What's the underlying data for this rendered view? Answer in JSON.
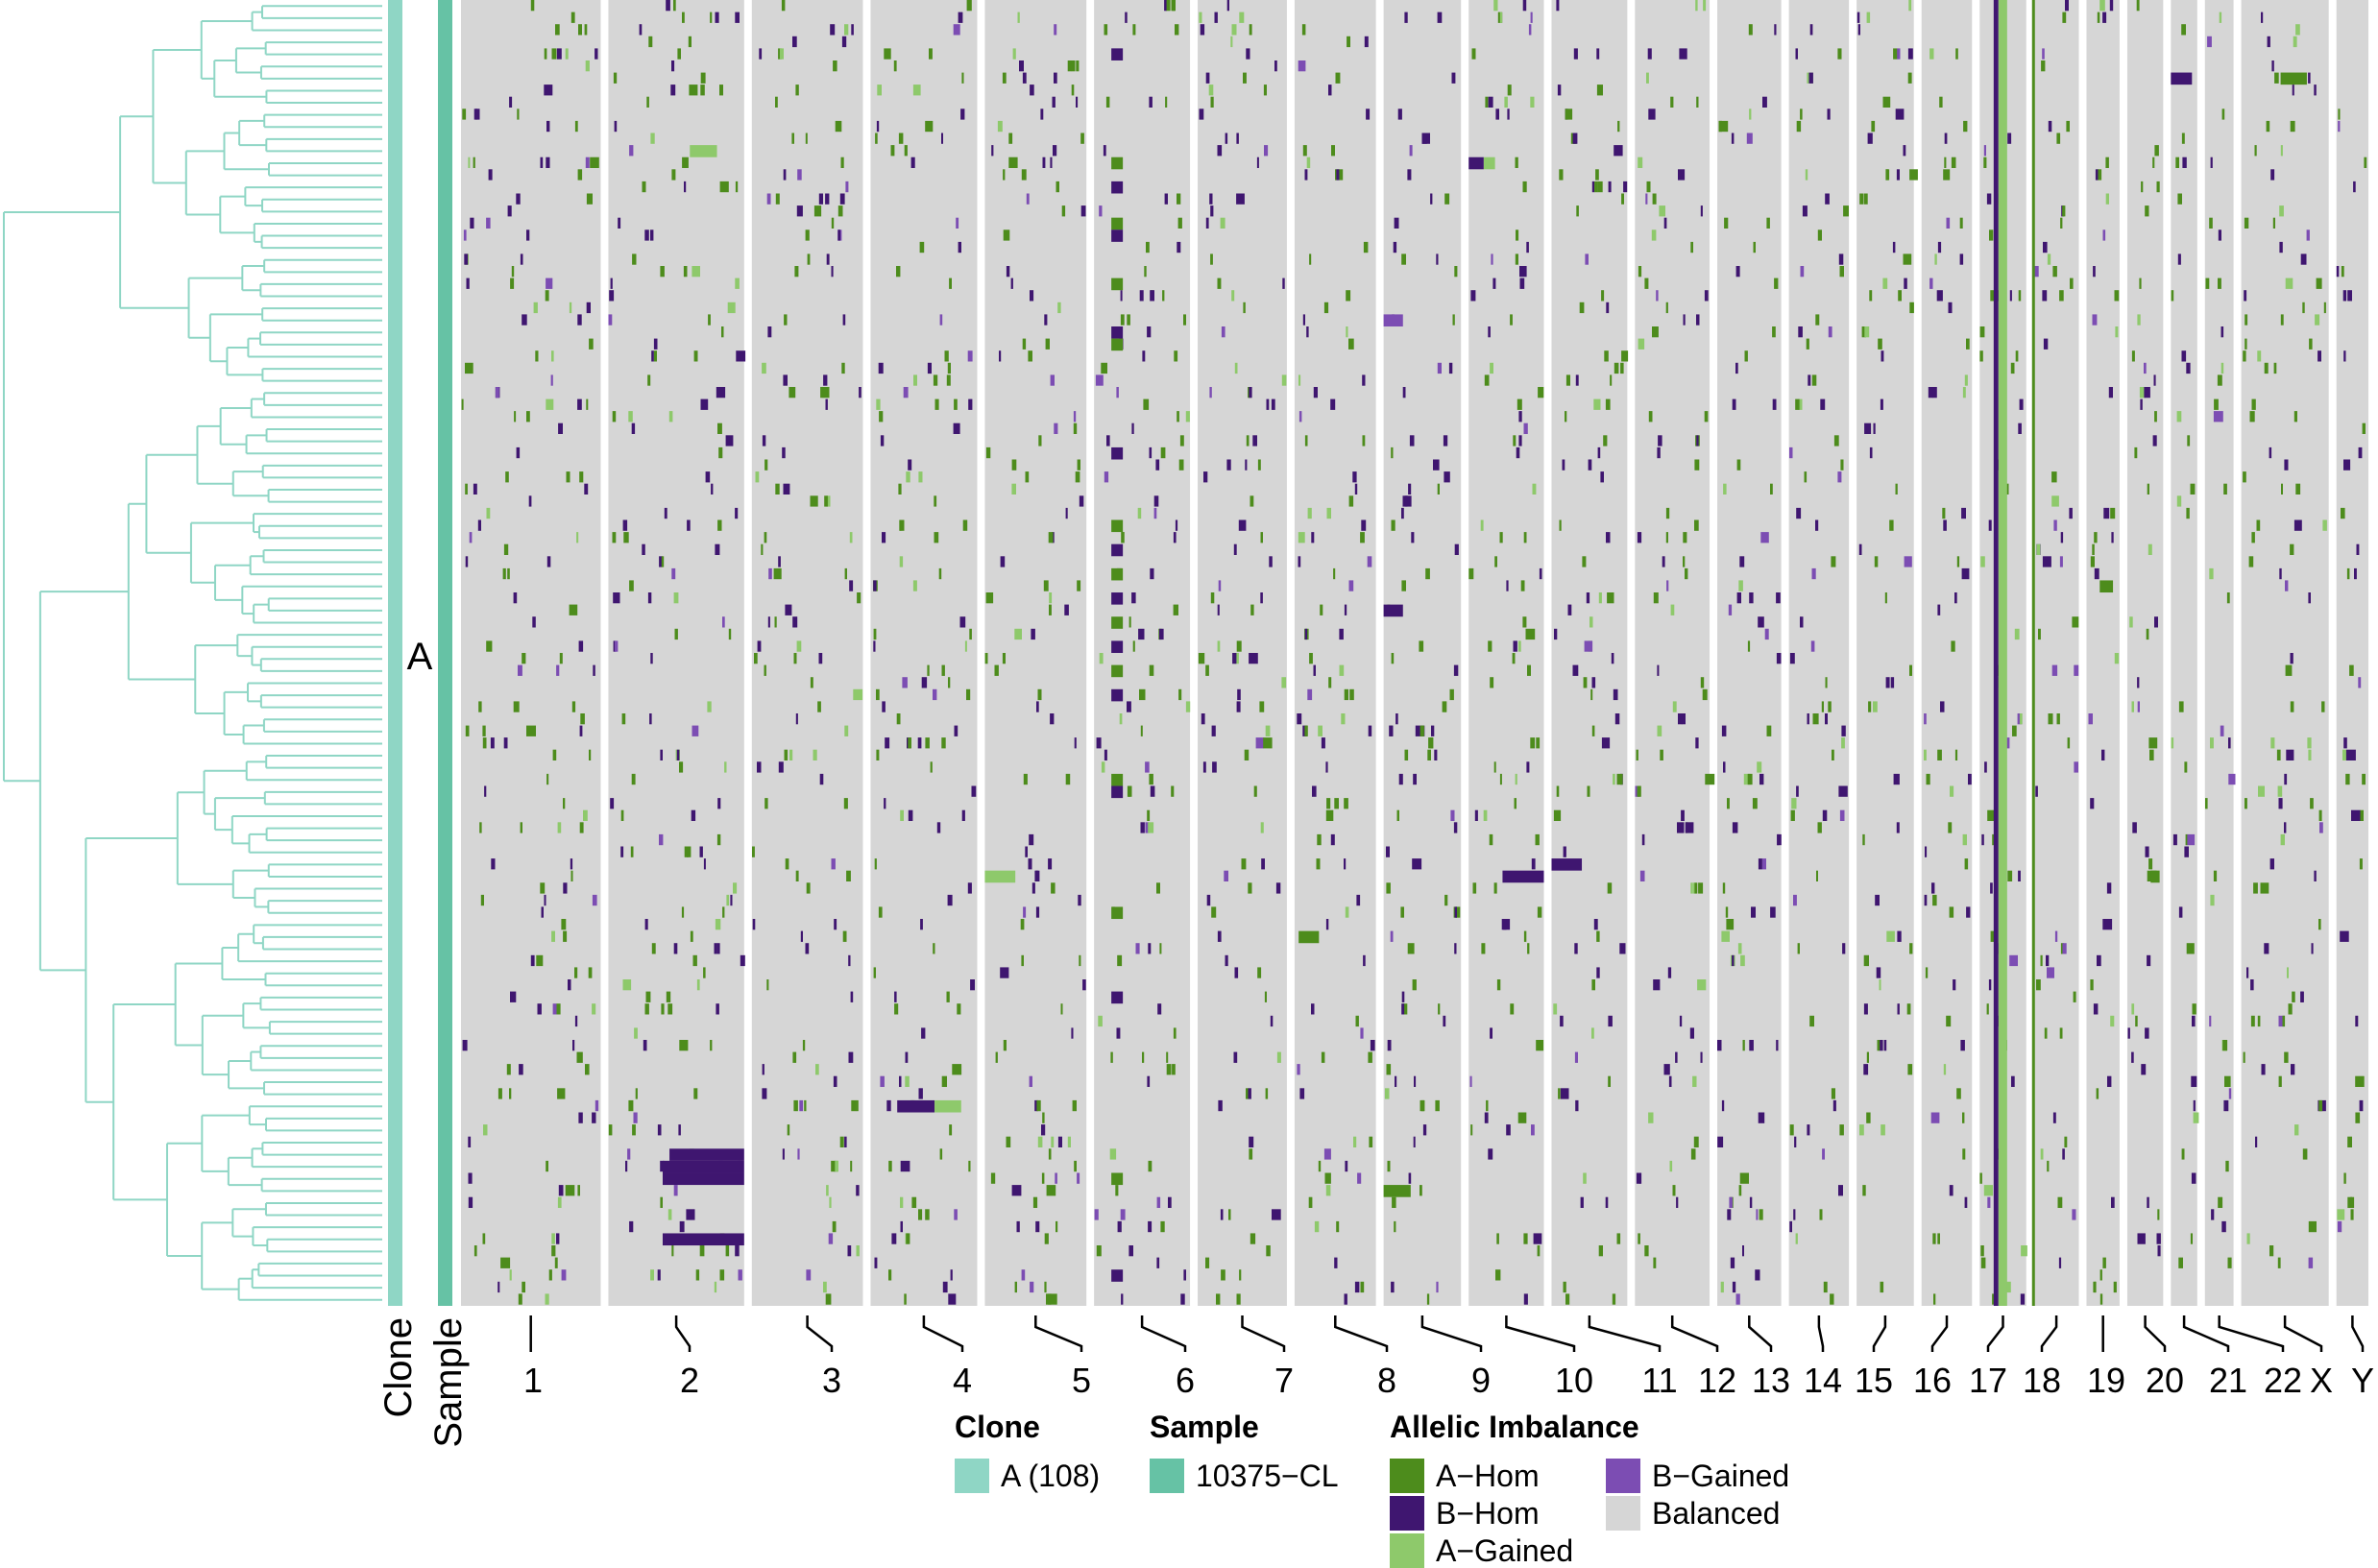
{
  "chart_data": {
    "type": "heatmap",
    "title": "",
    "xlabel": "",
    "ylabel": "",
    "n_cells": 108,
    "clone_label": "A",
    "annotation_track_labels": [
      "Clone",
      "Sample"
    ],
    "chromosomes": [
      "1",
      "2",
      "3",
      "4",
      "5",
      "6",
      "7",
      "8",
      "9",
      "10",
      "11",
      "12",
      "13",
      "14",
      "15",
      "16",
      "17",
      "18",
      "19",
      "20",
      "21",
      "22",
      "X",
      "Y"
    ],
    "chromosome_relative_sizes": [
      249,
      242,
      198,
      190,
      181,
      171,
      159,
      145,
      138,
      134,
      135,
      133,
      114,
      107,
      102,
      90,
      83,
      80,
      59,
      64,
      47,
      51,
      156,
      57
    ],
    "states": [
      "A-Hom",
      "B-Hom",
      "A-Gained",
      "B-Gained",
      "Balanced"
    ],
    "state_colors": {
      "A-Hom": "#4d8c1c",
      "B-Hom": "#3f1670",
      "A-Gained": "#8ec96b",
      "B-Gained": "#7c4db3",
      "Balanced": "#d6d6d6"
    },
    "notable_events": [
      {
        "chromosome": "2",
        "state": "B-Hom",
        "cells": "rows 95-97, 102"
      },
      {
        "chromosome": "4",
        "state": "B-Hom",
        "cells": "row 91"
      },
      {
        "chromosome": "10",
        "state": "B-Hom",
        "cells": "row 72"
      },
      {
        "chromosome": "11",
        "state": "B-Hom",
        "cells": "row 71"
      },
      {
        "chromosome": "17",
        "state": "B-Hom",
        "cells": "all rows, single bin"
      },
      {
        "chromosome": "17",
        "state": "A-Gained",
        "cells": "all rows, adjacent bins"
      },
      {
        "chromosome": "8",
        "state": "A-Hom",
        "cells": "row 77"
      },
      {
        "chromosome": "9",
        "state": "A-Hom",
        "cells": "row 98"
      },
      {
        "chromosome": "19",
        "state": "A-Hom",
        "cells": "row 48"
      },
      {
        "chromosome": "X",
        "state": "A-Hom",
        "cells": "row 4"
      }
    ]
  },
  "legend": {
    "clone": {
      "title": "Clone",
      "items": [
        {
          "label": "A (108)",
          "color": "#8fd6c5"
        }
      ]
    },
    "sample": {
      "title": "Sample",
      "items": [
        {
          "label": "10375−CL",
          "color": "#66c2a5"
        }
      ]
    },
    "allelic_imbalance": {
      "title": "Allelic Imbalance",
      "items": [
        {
          "label": "A−Hom",
          "color": "#4d8c1c"
        },
        {
          "label": "B−Hom",
          "color": "#3f1670"
        },
        {
          "label": "A−Gained",
          "color": "#8ec96b"
        },
        {
          "label": "B−Gained",
          "color": "#7c4db3"
        },
        {
          "label": "Balanced",
          "color": "#d6d6d6"
        }
      ]
    }
  },
  "colors": {
    "clone_track": "#8fd6c5",
    "sample_track": "#66c2a5",
    "dendrogram": "#8fd6c5"
  }
}
